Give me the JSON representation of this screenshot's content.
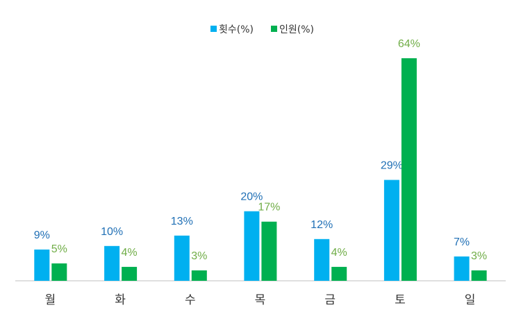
{
  "chart_data": {
    "type": "bar",
    "categories": [
      "월",
      "화",
      "수",
      "목",
      "금",
      "토",
      "일"
    ],
    "series": [
      {
        "name": "횟수(%)",
        "color": "#00b0f0",
        "label_color": "#1f6fb5",
        "values": [
          9,
          10,
          13,
          20,
          12,
          29,
          7
        ],
        "labels": [
          "9%",
          "10%",
          "13%",
          "20%",
          "12%",
          "29%",
          "7%"
        ]
      },
      {
        "name": "인원(%)",
        "color": "#00b050",
        "label_color": "#70ad47",
        "values": [
          5,
          4,
          3,
          17,
          4,
          64,
          3
        ],
        "labels": [
          "5%",
          "4%",
          "3%",
          "17%",
          "4%",
          "64%",
          "3%"
        ]
      }
    ],
    "ylim": [
      0,
      64
    ],
    "grid": false,
    "legend_position": "top-center"
  }
}
